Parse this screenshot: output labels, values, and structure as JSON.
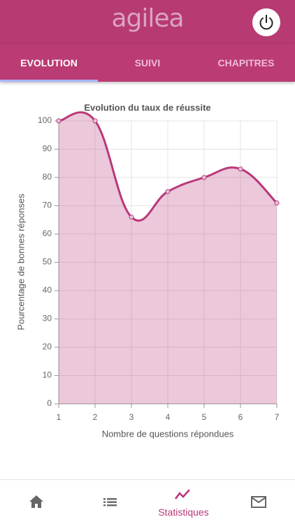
{
  "app": {
    "logo": "agilea"
  },
  "tabs": [
    "EVOLUTION",
    "SUIVI",
    "CHAPITRES"
  ],
  "bottom_nav": {
    "active_label": "Statistiques"
  },
  "chart_data": {
    "type": "line",
    "title": "Evolution du taux de réussite",
    "x_label": "Nombre de questions répondues",
    "y_label": "Pourcentage de bonnes réponses",
    "x": [
      1,
      2,
      3,
      4,
      5,
      6,
      7
    ],
    "values": [
      100,
      100,
      66,
      75,
      80,
      83,
      71
    ],
    "color": "#b8387a",
    "fill": true,
    "xlim": [
      1,
      7
    ],
    "xticks": [
      1,
      2,
      3,
      4,
      5,
      6,
      7
    ],
    "ylim": [
      0,
      100
    ],
    "yticks": [
      0,
      10,
      20,
      30,
      40,
      50,
      60,
      70,
      80,
      90,
      100
    ],
    "grid": true
  }
}
